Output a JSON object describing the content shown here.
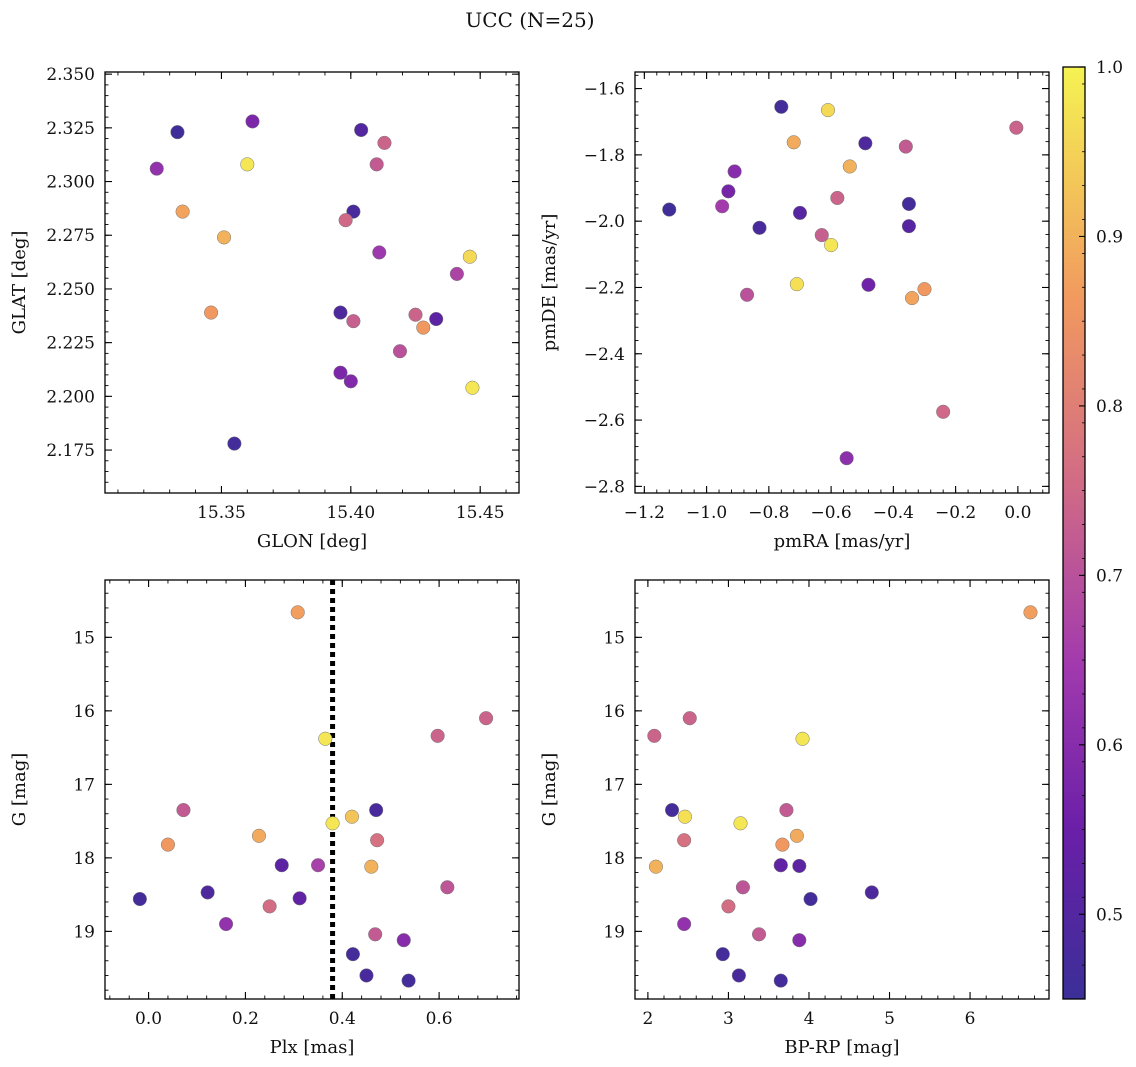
{
  "title": "UCC (N=25)",
  "colorbar": {
    "range": [
      0.45,
      1.0
    ],
    "ticks": [
      0.5,
      0.6,
      0.7,
      0.8,
      0.9,
      1.0
    ],
    "tick_labels": [
      "0.5",
      "0.6",
      "0.7",
      "0.8",
      "0.9",
      "1.0"
    ],
    "colormap": "plasma"
  },
  "chart_data": [
    {
      "type": "scatter",
      "id": "glon-glat",
      "xlabel": "GLON [deg]",
      "ylabel": "GLAT [deg]",
      "xlim": [
        15.305,
        15.465
      ],
      "ylim": [
        2.155,
        2.351
      ],
      "invert_y": false,
      "xticks": [
        15.35,
        15.4,
        15.45
      ],
      "xtick_labels": [
        "15.35",
        "15.40",
        "15.45"
      ],
      "yticks": [
        2.175,
        2.2,
        2.225,
        2.25,
        2.275,
        2.3,
        2.325,
        2.35
      ],
      "ytick_labels": [
        "2.175",
        "2.200",
        "2.225",
        "2.250",
        "2.275",
        "2.300",
        "2.325",
        "2.350"
      ],
      "x": [
        15.333,
        15.362,
        15.325,
        15.36,
        15.335,
        15.351,
        15.346,
        15.355,
        15.404,
        15.413,
        15.41,
        15.401,
        15.398,
        15.411,
        15.446,
        15.441,
        15.396,
        15.401,
        15.425,
        15.428,
        15.433,
        15.419,
        15.396,
        15.4,
        15.447
      ],
      "y": [
        2.323,
        2.328,
        2.306,
        2.308,
        2.286,
        2.274,
        2.239,
        2.178,
        2.324,
        2.318,
        2.308,
        2.286,
        2.282,
        2.267,
        2.265,
        2.257,
        2.239,
        2.235,
        2.238,
        2.232,
        2.236,
        2.221,
        2.211,
        2.207,
        2.204
      ],
      "c": [
        0.46,
        0.58,
        0.62,
        0.98,
        0.88,
        0.9,
        0.86,
        0.47,
        0.5,
        0.74,
        0.72,
        0.48,
        0.75,
        0.64,
        0.96,
        0.67,
        0.49,
        0.73,
        0.74,
        0.86,
        0.52,
        0.7,
        0.58,
        0.59,
        0.98
      ]
    },
    {
      "type": "scatter",
      "id": "pmra-pmde",
      "xlabel": "pmRA [mas/yr]",
      "ylabel": "pmDE [mas/yr]",
      "xlim": [
        -1.23,
        0.1
      ],
      "ylim": [
        -2.82,
        -1.55
      ],
      "invert_y": false,
      "xticks": [
        -1.2,
        -1.0,
        -0.8,
        -0.6,
        -0.4,
        -0.2,
        0.0
      ],
      "xtick_labels": [
        "−1.2",
        "−1.0",
        "−0.8",
        "−0.6",
        "−0.4",
        "−0.2",
        "0.0"
      ],
      "yticks": [
        -2.8,
        -2.6,
        -2.4,
        -2.2,
        -2.0,
        -1.8,
        -1.6
      ],
      "ytick_labels": [
        "−2.8",
        "−2.6",
        "−2.4",
        "−2.2",
        "−2.0",
        "−1.8",
        "−1.6"
      ],
      "x": [
        -0.76,
        -0.61,
        -0.72,
        -0.005,
        -0.49,
        -0.36,
        -0.54,
        -0.91,
        -0.93,
        -0.95,
        -1.12,
        -0.83,
        -0.7,
        -0.58,
        -0.35,
        -0.35,
        -0.63,
        -0.6,
        -0.71,
        -0.87,
        -0.48,
        -0.34,
        -0.3,
        -0.24,
        -0.55
      ],
      "y": [
        -1.655,
        -1.665,
        -1.762,
        -1.718,
        -1.765,
        -1.775,
        -1.835,
        -1.85,
        -1.91,
        -1.955,
        -1.965,
        -2.02,
        -1.975,
        -1.93,
        -1.948,
        -2.015,
        -2.042,
        -2.072,
        -2.19,
        -2.222,
        -2.192,
        -2.232,
        -2.205,
        -2.575,
        -2.715
      ],
      "c": [
        0.47,
        0.96,
        0.89,
        0.74,
        0.49,
        0.72,
        0.9,
        0.6,
        0.57,
        0.65,
        0.46,
        0.48,
        0.51,
        0.74,
        0.47,
        0.51,
        0.73,
        0.98,
        0.97,
        0.7,
        0.56,
        0.88,
        0.86,
        0.75,
        0.61
      ]
    },
    {
      "type": "scatter",
      "id": "plx-g",
      "xlabel": "Plx [mas]",
      "ylabel": "G [mag]",
      "xlim": [
        -0.09,
        0.765
      ],
      "ylim": [
        19.92,
        14.22
      ],
      "invert_y": true,
      "xticks": [
        0.0,
        0.2,
        0.4,
        0.6
      ],
      "xtick_labels": [
        "0.0",
        "0.2",
        "0.4",
        "0.6"
      ],
      "yticks": [
        15,
        16,
        17,
        18,
        19
      ],
      "ytick_labels": [
        "15",
        "16",
        "17",
        "18",
        "19"
      ],
      "vline_x": 0.38,
      "x": [
        0.308,
        0.697,
        0.597,
        0.365,
        0.072,
        0.47,
        0.42,
        0.38,
        0.472,
        0.228,
        0.04,
        0.275,
        0.35,
        0.46,
        0.617,
        0.122,
        -0.018,
        0.312,
        0.25,
        0.16,
        0.468,
        0.527,
        0.422,
        0.45,
        0.537
      ],
      "y": [
        14.66,
        16.1,
        16.34,
        16.38,
        17.35,
        17.35,
        17.44,
        17.53,
        17.76,
        17.7,
        17.82,
        18.1,
        18.1,
        18.12,
        18.4,
        18.47,
        18.56,
        18.55,
        18.66,
        18.9,
        19.04,
        19.12,
        19.31,
        19.6,
        19.67
      ],
      "c": [
        0.87,
        0.74,
        0.74,
        0.98,
        0.72,
        0.48,
        0.93,
        0.98,
        0.77,
        0.89,
        0.86,
        0.52,
        0.66,
        0.9,
        0.71,
        0.49,
        0.47,
        0.53,
        0.76,
        0.62,
        0.72,
        0.6,
        0.47,
        0.48,
        0.47
      ]
    },
    {
      "type": "scatter",
      "id": "bprp-g",
      "xlabel": "BP-RP [mag]",
      "ylabel": "G [mag]",
      "xlim": [
        1.84,
        6.98
      ],
      "ylim": [
        19.92,
        14.22
      ],
      "invert_y": true,
      "xticks": [
        2,
        3,
        4,
        5,
        6
      ],
      "xtick_labels": [
        "2",
        "3",
        "4",
        "5",
        "6"
      ],
      "yticks": [
        15,
        16,
        17,
        18,
        19
      ],
      "ytick_labels": [
        "15",
        "16",
        "17",
        "18",
        "19"
      ],
      "x": [
        6.75,
        2.52,
        2.08,
        3.92,
        2.3,
        3.72,
        2.46,
        3.15,
        2.45,
        3.85,
        3.67,
        2.1,
        3.65,
        3.88,
        3.18,
        4.78,
        4.02,
        3.0,
        3.38,
        2.45,
        3.88,
        2.93,
        3.13,
        3.65,
        3.65
      ],
      "y": [
        14.66,
        16.1,
        16.34,
        16.38,
        17.35,
        17.35,
        17.44,
        17.53,
        17.76,
        17.7,
        17.82,
        18.12,
        18.1,
        18.11,
        18.4,
        18.47,
        18.56,
        18.66,
        19.04,
        18.9,
        19.12,
        19.31,
        19.6,
        19.67,
        18.1
      ],
      "c": [
        0.87,
        0.74,
        0.74,
        0.98,
        0.47,
        0.72,
        0.97,
        0.98,
        0.77,
        0.89,
        0.86,
        0.9,
        0.66,
        0.52,
        0.71,
        0.49,
        0.47,
        0.76,
        0.72,
        0.62,
        0.6,
        0.47,
        0.48,
        0.47,
        0.53
      ]
    }
  ]
}
